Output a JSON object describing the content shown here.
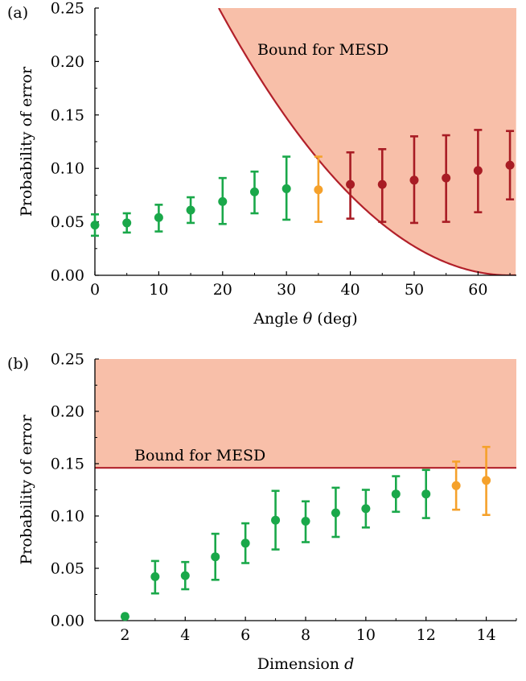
{
  "chart_data": [
    {
      "type": "scatter",
      "panel_label": "(a)",
      "xlabel_text": "Angle ",
      "xlabel_var": "θ",
      "xlabel_unit": " (deg)",
      "ylabel": "Probability of error",
      "xlim": [
        0,
        66
      ],
      "ylim": [
        0,
        0.25
      ],
      "xticks": [
        "0",
        "10",
        "20",
        "30",
        "40",
        "50",
        "60"
      ],
      "xtick_values": [
        0,
        10,
        20,
        30,
        40,
        50,
        60
      ],
      "yticks": [
        "0.00",
        "0.05",
        "0.10",
        "0.15",
        "0.20",
        "0.25"
      ],
      "ytick_values": [
        0,
        0.05,
        0.1,
        0.15,
        0.2,
        0.25
      ],
      "region_label": "Bound for MESD",
      "bound_curve": "quadratic, min at x=65, value 0.25 at x=19.4",
      "colors": {
        "green": "#1aa84a",
        "orange": "#f5a12b",
        "red": "#a81c24",
        "region": "#f8bfa9",
        "boundary": "#b2202a"
      },
      "points": [
        {
          "x": 0,
          "y": 0.047,
          "lo": 0.037,
          "hi": 0.057,
          "color": "green"
        },
        {
          "x": 5,
          "y": 0.049,
          "lo": 0.04,
          "hi": 0.058,
          "color": "green"
        },
        {
          "x": 10,
          "y": 0.054,
          "lo": 0.041,
          "hi": 0.066,
          "color": "green"
        },
        {
          "x": 15,
          "y": 0.061,
          "lo": 0.049,
          "hi": 0.073,
          "color": "green"
        },
        {
          "x": 20,
          "y": 0.069,
          "lo": 0.048,
          "hi": 0.091,
          "color": "green"
        },
        {
          "x": 25,
          "y": 0.078,
          "lo": 0.058,
          "hi": 0.097,
          "color": "green"
        },
        {
          "x": 30,
          "y": 0.081,
          "lo": 0.052,
          "hi": 0.111,
          "color": "green"
        },
        {
          "x": 35,
          "y": 0.08,
          "lo": 0.05,
          "hi": 0.111,
          "color": "orange"
        },
        {
          "x": 40,
          "y": 0.085,
          "lo": 0.053,
          "hi": 0.115,
          "color": "red"
        },
        {
          "x": 45,
          "y": 0.085,
          "lo": 0.05,
          "hi": 0.118,
          "color": "red"
        },
        {
          "x": 50,
          "y": 0.089,
          "lo": 0.049,
          "hi": 0.13,
          "color": "red"
        },
        {
          "x": 55,
          "y": 0.091,
          "lo": 0.05,
          "hi": 0.131,
          "color": "red"
        },
        {
          "x": 60,
          "y": 0.098,
          "lo": 0.059,
          "hi": 0.136,
          "color": "red"
        },
        {
          "x": 65,
          "y": 0.103,
          "lo": 0.071,
          "hi": 0.135,
          "color": "red"
        }
      ]
    },
    {
      "type": "scatter",
      "panel_label": "(b)",
      "xlabel_text": "Dimension ",
      "xlabel_var": "d",
      "xlabel_unit": "",
      "ylabel": "Probability of error",
      "xlim": [
        1,
        15
      ],
      "ylim": [
        0,
        0.25
      ],
      "xticks": [
        "2",
        "4",
        "6",
        "8",
        "10",
        "12",
        "14"
      ],
      "xtick_values": [
        2,
        4,
        6,
        8,
        10,
        12,
        14
      ],
      "yticks": [
        "0.00",
        "0.05",
        "0.10",
        "0.15",
        "0.20",
        "0.25"
      ],
      "ytick_values": [
        0,
        0.05,
        0.1,
        0.15,
        0.2,
        0.25
      ],
      "region_label": "Bound for MESD",
      "bound_value": 0.146,
      "colors": {
        "green": "#1aa84a",
        "orange": "#f5a12b",
        "region": "#f8bfa9",
        "boundary": "#b2202a"
      },
      "points": [
        {
          "x": 2,
          "y": 0.004,
          "lo": 0.004,
          "hi": 0.004,
          "color": "green"
        },
        {
          "x": 3,
          "y": 0.042,
          "lo": 0.026,
          "hi": 0.057,
          "color": "green"
        },
        {
          "x": 4,
          "y": 0.043,
          "lo": 0.03,
          "hi": 0.056,
          "color": "green"
        },
        {
          "x": 5,
          "y": 0.061,
          "lo": 0.039,
          "hi": 0.083,
          "color": "green"
        },
        {
          "x": 6,
          "y": 0.074,
          "lo": 0.055,
          "hi": 0.093,
          "color": "green"
        },
        {
          "x": 7,
          "y": 0.096,
          "lo": 0.068,
          "hi": 0.124,
          "color": "green"
        },
        {
          "x": 8,
          "y": 0.095,
          "lo": 0.075,
          "hi": 0.114,
          "color": "green"
        },
        {
          "x": 9,
          "y": 0.103,
          "lo": 0.08,
          "hi": 0.127,
          "color": "green"
        },
        {
          "x": 10,
          "y": 0.107,
          "lo": 0.089,
          "hi": 0.125,
          "color": "green"
        },
        {
          "x": 11,
          "y": 0.121,
          "lo": 0.104,
          "hi": 0.138,
          "color": "green"
        },
        {
          "x": 12,
          "y": 0.121,
          "lo": 0.098,
          "hi": 0.144,
          "color": "green"
        },
        {
          "x": 13,
          "y": 0.129,
          "lo": 0.106,
          "hi": 0.152,
          "color": "orange"
        },
        {
          "x": 14,
          "y": 0.134,
          "lo": 0.101,
          "hi": 0.166,
          "color": "orange"
        }
      ]
    }
  ]
}
